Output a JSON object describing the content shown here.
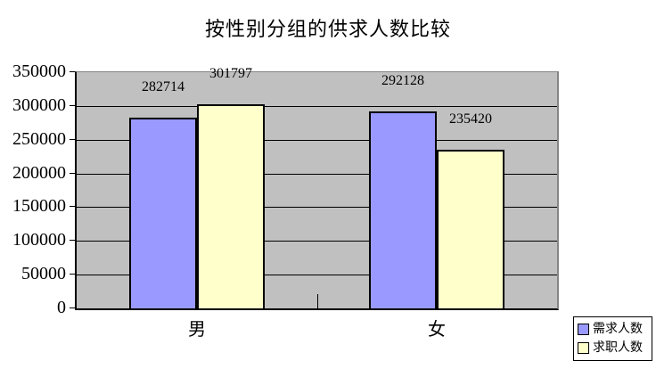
{
  "chart_data": {
    "type": "bar",
    "title": "按性别分组的供求人数比较",
    "categories": [
      "男",
      "女"
    ],
    "series": [
      {
        "name": "需求人数",
        "color": "#9999ff",
        "values": [
          282714,
          292128
        ]
      },
      {
        "name": "求职人数",
        "color": "#ffffcc",
        "values": [
          301797,
          235420
        ]
      }
    ],
    "ylim": [
      0,
      350000
    ],
    "ytick_interval": 50000,
    "ytick_labels": [
      "350000",
      "300000",
      "250000",
      "200000",
      "150000",
      "100000",
      "50000",
      "0"
    ],
    "grid": true,
    "data_labels": true,
    "legend_position": "bottom-right",
    "plot_background": "#c0c0c0",
    "gridline_color": "#000000",
    "bar_border_color": "#000000",
    "text_color": "#000000"
  }
}
